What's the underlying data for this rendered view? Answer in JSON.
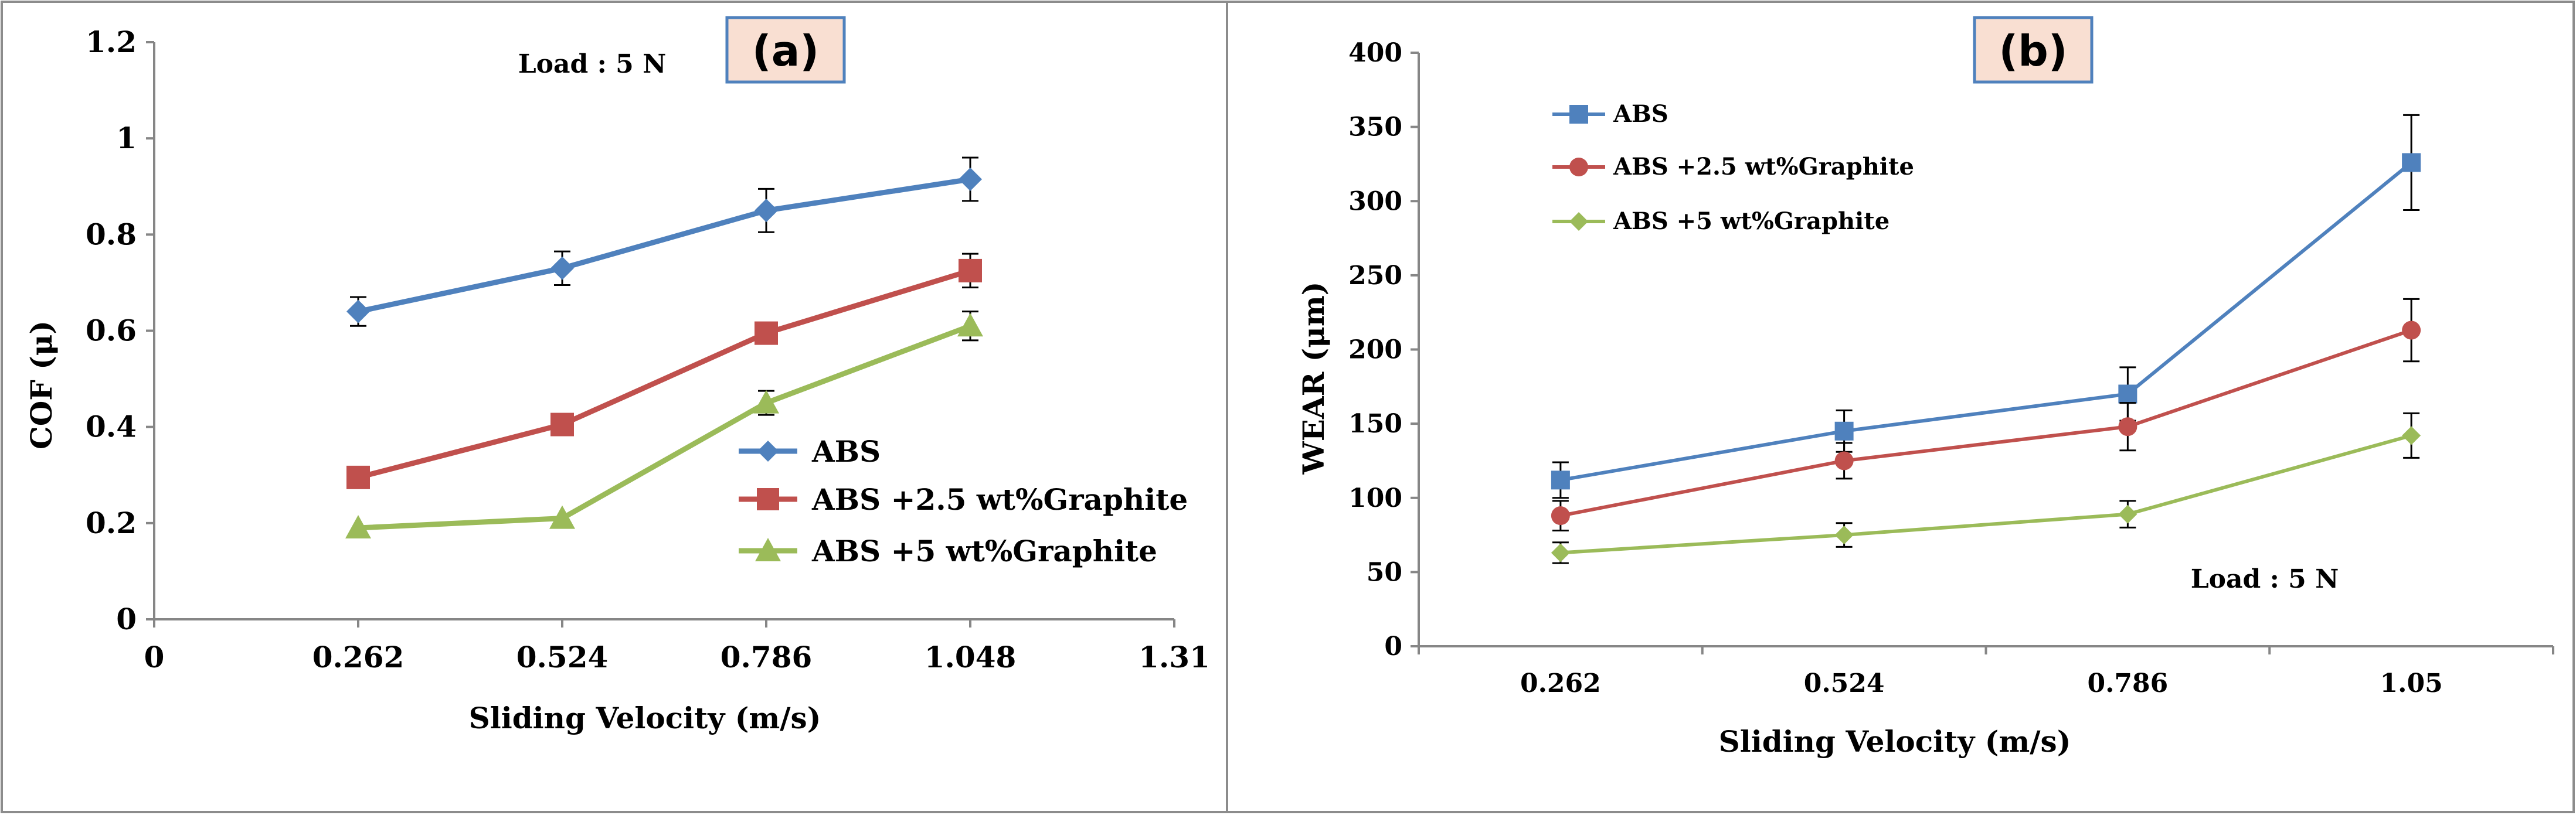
{
  "colors": {
    "abs": "#4f81bd",
    "abs25": "#c0504d",
    "abs5": "#9bbb59"
  },
  "chart_data": [
    {
      "panel": "(a)",
      "type": "line",
      "annotation": "Load : 5 N",
      "xlabel": "Sliding Velocity (m/s)",
      "ylabel": "COF (μ)",
      "xlim": [
        0,
        1.31
      ],
      "ylim": [
        0,
        1.2
      ],
      "xticks": [
        0,
        0.262,
        0.524,
        0.786,
        1.048,
        1.31
      ],
      "xtick_labels": [
        "0",
        "0.262",
        "0.524",
        "0.786",
        "1.048",
        "1.31"
      ],
      "yticks": [
        0,
        0.2,
        0.4,
        0.6,
        0.8,
        1,
        1.2
      ],
      "ytick_labels": [
        "0",
        "0.2",
        "0.4",
        "0.6",
        "0.8",
        "1",
        "1.2"
      ],
      "legend": "right-middle",
      "series": [
        {
          "name": "ABS",
          "marker": "diamond",
          "color": "#4f81bd",
          "x": [
            0.262,
            0.524,
            0.786,
            1.048
          ],
          "values": [
            0.64,
            0.73,
            0.85,
            0.915
          ],
          "error": [
            0.03,
            0.035,
            0.045,
            0.045
          ]
        },
        {
          "name": "ABS +2.5 wt%Graphite",
          "marker": "square",
          "color": "#c0504d",
          "x": [
            0.262,
            0.524,
            0.786,
            1.048
          ],
          "values": [
            0.295,
            0.405,
            0.595,
            0.725
          ],
          "error": [
            0,
            0,
            0.02,
            0.035
          ]
        },
        {
          "name": "ABS +5 wt%Graphite",
          "marker": "triangle",
          "color": "#9bbb59",
          "x": [
            0.262,
            0.524,
            0.786,
            1.048
          ],
          "values": [
            0.19,
            0.21,
            0.45,
            0.61
          ],
          "error": [
            0,
            0,
            0.025,
            0.03
          ]
        }
      ]
    },
    {
      "panel": "(b)",
      "type": "line",
      "annotation": "Load : 5 N",
      "xlabel": "Sliding Velocity (m/s)",
      "ylabel": "WEAR  (μm)",
      "categories": [
        "0.262",
        "0.524",
        "0.786",
        "1.05"
      ],
      "ylim": [
        0,
        400
      ],
      "yticks": [
        0,
        50,
        100,
        150,
        200,
        250,
        300,
        350,
        400
      ],
      "ytick_labels": [
        "0",
        "50",
        "100",
        "150",
        "200",
        "250",
        "300",
        "350",
        "400"
      ],
      "legend": "top-left",
      "series": [
        {
          "name": "ABS",
          "marker": "square",
          "color": "#4f81bd",
          "values": [
            112,
            145,
            170,
            326
          ],
          "error": [
            12,
            14,
            18,
            32
          ]
        },
        {
          "name": "ABS +2.5 wt%Graphite",
          "marker": "circle",
          "color": "#c0504d",
          "values": [
            88,
            125,
            148,
            213
          ],
          "error": [
            10,
            12,
            16,
            21
          ]
        },
        {
          "name": "ABS +5 wt%Graphite",
          "marker": "diamond",
          "color": "#9bbb59",
          "values": [
            63,
            75,
            89,
            142
          ],
          "error": [
            7,
            8,
            9,
            15
          ]
        }
      ]
    }
  ]
}
